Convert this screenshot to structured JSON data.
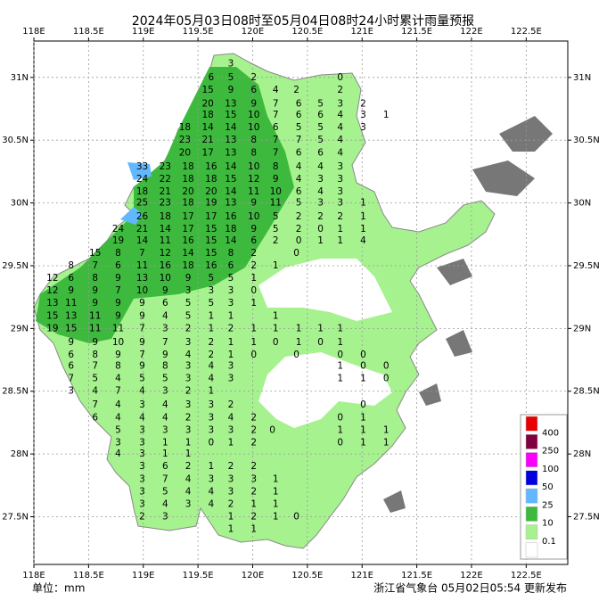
{
  "map": {
    "title": "2024年05月03日08时至05月04日08时24小时累计雨量预报",
    "unit_label": "单位：mm",
    "footer": "浙江省气象台 05月02日05:54 更新发布",
    "lonlim": [
      118,
      122.88
    ],
    "latlim": [
      27.12,
      31.29
    ],
    "grid": true,
    "lonticks": [
      {
        "value": 118,
        "label": "118E"
      },
      {
        "value": 118.5,
        "label": "118.5E"
      },
      {
        "value": 119,
        "label": "119E"
      },
      {
        "value": 119.5,
        "label": "119.5E"
      },
      {
        "value": 120,
        "label": "120E"
      },
      {
        "value": 120.5,
        "label": "120.5E"
      },
      {
        "value": 121,
        "label": "121E"
      },
      {
        "value": 121.5,
        "label": "121.5E"
      },
      {
        "value": 122,
        "label": "122E"
      },
      {
        "value": 122.5,
        "label": "122.5E"
      }
    ],
    "latticks": [
      {
        "value": 31,
        "label": "31N"
      },
      {
        "value": 30.5,
        "label": "30.5N"
      },
      {
        "value": 30,
        "label": "30N"
      },
      {
        "value": 29.5,
        "label": "29.5N"
      },
      {
        "value": 29,
        "label": "29N"
      },
      {
        "value": 28.5,
        "label": "28.5N"
      },
      {
        "value": 28,
        "label": "28N"
      },
      {
        "value": 27.5,
        "label": "27.5N"
      }
    ],
    "legend": {
      "thresholds": [
        0.1,
        10,
        25,
        50,
        100,
        250,
        400
      ],
      "colors": [
        "#ffffff",
        "#a6f28f",
        "#3dba3d",
        "#61b8ff",
        "#0000e1",
        "#fa00fa",
        "#800040",
        "#e80000"
      ]
    },
    "stations": [
      {
        "lat": 31.11,
        "lon": [
          119.8
        ],
        "values": [
          3
        ]
      },
      {
        "lat": 31.0,
        "lon": [
          119.62,
          119.8,
          120.01,
          120.8
        ],
        "values": [
          6,
          5,
          2,
          0
        ]
      },
      {
        "lat": 30.9,
        "lon": [
          119.59,
          119.8,
          120.01,
          120.21,
          120.4,
          120.8
        ],
        "values": [
          15,
          9,
          6,
          4,
          2,
          2
        ]
      },
      {
        "lat": 30.79,
        "lon": [
          119.59,
          119.8,
          120.01,
          120.21,
          120.42,
          120.62,
          120.8,
          121.01
        ],
        "values": [
          20,
          13,
          9,
          7,
          6,
          5,
          3,
          2
        ]
      },
      {
        "lat": 30.7,
        "lon": [
          119.59,
          119.8,
          120.01,
          120.21,
          120.42,
          120.62,
          120.8,
          121.01,
          121.22
        ],
        "values": [
          18,
          15,
          10,
          7,
          6,
          6,
          4,
          3,
          1
        ]
      },
      {
        "lat": 30.6,
        "lon": [
          119.38,
          119.59,
          119.8,
          120.01,
          120.21,
          120.42,
          120.62,
          120.8,
          121.01
        ],
        "values": [
          18,
          14,
          14,
          10,
          6,
          5,
          5,
          4,
          3
        ]
      },
      {
        "lat": 30.5,
        "lon": [
          119.38,
          119.59,
          119.8,
          120.01,
          120.21,
          120.42,
          120.62,
          120.8
        ],
        "values": [
          23,
          21,
          13,
          8,
          7,
          7,
          5,
          4
        ]
      },
      {
        "lat": 30.4,
        "lon": [
          119.38,
          119.59,
          119.8,
          120.01,
          120.21,
          120.42,
          120.62,
          120.8
        ],
        "values": [
          20,
          17,
          13,
          8,
          7,
          6,
          6,
          4
        ]
      },
      {
        "lat": 30.29,
        "lon": [
          118.99,
          119.2,
          119.41,
          119.62,
          119.8,
          120.01,
          120.21,
          120.42,
          120.62,
          120.8
        ],
        "values": [
          33,
          23,
          18,
          16,
          14,
          10,
          8,
          4,
          4,
          3
        ]
      },
      {
        "lat": 30.19,
        "lon": [
          118.99,
          119.2,
          119.41,
          119.62,
          119.8,
          120.01,
          120.21,
          120.42,
          120.62,
          120.8
        ],
        "values": [
          24,
          22,
          18,
          18,
          15,
          12,
          9,
          4,
          3,
          3
        ]
      },
      {
        "lat": 30.09,
        "lon": [
          118.99,
          119.2,
          119.41,
          119.62,
          119.8,
          120.01,
          120.21,
          120.42,
          120.62,
          120.8
        ],
        "values": [
          18,
          21,
          20,
          20,
          14,
          11,
          10,
          6,
          4,
          3
        ]
      },
      {
        "lat": 30.0,
        "lon": [
          118.99,
          119.2,
          119.41,
          119.62,
          119.8,
          120.01,
          120.21,
          120.42,
          120.62,
          120.8,
          121.01
        ],
        "values": [
          25,
          23,
          18,
          19,
          13,
          9,
          11,
          5,
          3,
          3,
          1
        ]
      },
      {
        "lat": 29.89,
        "lon": [
          118.99,
          119.2,
          119.41,
          119.62,
          119.8,
          120.01,
          120.21,
          120.42,
          120.62,
          120.8,
          121.01
        ],
        "values": [
          26,
          18,
          17,
          17,
          16,
          10,
          5,
          2,
          2,
          2,
          1
        ]
      },
      {
        "lat": 29.79,
        "lon": [
          118.77,
          118.99,
          119.2,
          119.41,
          119.62,
          119.8,
          120.01,
          120.21,
          120.42,
          120.62,
          120.8,
          121.01
        ],
        "values": [
          24,
          21,
          14,
          17,
          15,
          18,
          9,
          5,
          2,
          0,
          1,
          1
        ]
      },
      {
        "lat": 29.7,
        "lon": [
          118.77,
          118.99,
          119.2,
          119.41,
          119.62,
          119.8,
          120.01,
          120.21,
          120.42,
          120.62,
          120.8,
          121.01
        ],
        "values": [
          19,
          14,
          11,
          16,
          15,
          14,
          6,
          2,
          0,
          1,
          1,
          4
        ]
      },
      {
        "lat": 29.6,
        "lon": [
          118.56,
          118.77,
          118.99,
          119.2,
          119.41,
          119.62,
          119.8,
          120.01,
          120.4
        ],
        "values": [
          15,
          8,
          7,
          12,
          14,
          15,
          8,
          2,
          0
        ]
      },
      {
        "lat": 29.5,
        "lon": [
          118.34,
          118.56,
          118.77,
          118.99,
          119.2,
          119.41,
          119.62,
          119.8,
          120.01,
          120.21
        ],
        "values": [
          8,
          7,
          6,
          11,
          16,
          18,
          16,
          6,
          2,
          1
        ]
      },
      {
        "lat": 29.4,
        "lon": [
          118.17,
          118.34,
          118.56,
          118.77,
          118.99,
          119.2,
          119.41,
          119.62,
          119.8,
          120.01
        ],
        "values": [
          12,
          6,
          8,
          9,
          13,
          10,
          9,
          5,
          5,
          1
        ]
      },
      {
        "lat": 29.3,
        "lon": [
          118.17,
          118.34,
          118.56,
          118.77,
          118.99,
          119.2,
          119.41,
          119.62,
          119.8,
          120.01
        ],
        "values": [
          12,
          9,
          9,
          7,
          10,
          9,
          3,
          3,
          3,
          0
        ]
      },
      {
        "lat": 29.2,
        "lon": [
          118.17,
          118.34,
          118.56,
          118.77,
          118.99,
          119.2,
          119.41,
          119.62,
          119.8,
          120.01
        ],
        "values": [
          13,
          11,
          9,
          9,
          9,
          6,
          5,
          5,
          3,
          1
        ]
      },
      {
        "lat": 29.1,
        "lon": [
          118.17,
          118.34,
          118.56,
          118.77,
          118.99,
          119.2,
          119.41,
          119.62,
          119.8,
          120.21
        ],
        "values": [
          15,
          13,
          11,
          9,
          9,
          4,
          5,
          1,
          1,
          1
        ]
      },
      {
        "lat": 29.0,
        "lon": [
          118.17,
          118.34,
          118.56,
          118.77,
          118.99,
          119.2,
          119.41,
          119.62,
          119.8,
          120.01,
          120.21,
          120.42,
          120.62,
          120.8
        ],
        "values": [
          19,
          15,
          11,
          11,
          7,
          3,
          2,
          1,
          2,
          1,
          1,
          1,
          1,
          1
        ]
      },
      {
        "lat": 28.89,
        "lon": [
          118.34,
          118.56,
          118.77,
          118.99,
          119.2,
          119.41,
          119.62,
          119.8,
          120.01,
          120.21,
          120.42,
          120.62,
          120.8
        ],
        "values": [
          9,
          9,
          10,
          9,
          7,
          3,
          2,
          1,
          1,
          0,
          1,
          0,
          1
        ]
      },
      {
        "lat": 28.79,
        "lon": [
          118.34,
          118.56,
          118.77,
          118.99,
          119.2,
          119.41,
          119.62,
          119.8,
          120.01,
          120.4,
          120.8,
          121.01
        ],
        "values": [
          6,
          8,
          9,
          7,
          9,
          4,
          2,
          1,
          0,
          0,
          0,
          0
        ]
      },
      {
        "lat": 28.7,
        "lon": [
          118.34,
          118.56,
          118.77,
          118.99,
          119.2,
          119.41,
          119.62,
          119.8,
          120.8,
          121.01,
          121.22
        ],
        "values": [
          6,
          7,
          8,
          9,
          8,
          3,
          4,
          3,
          1,
          0,
          0
        ]
      },
      {
        "lat": 28.6,
        "lon": [
          118.34,
          118.56,
          118.77,
          118.99,
          119.2,
          119.41,
          119.62,
          119.8,
          120.8,
          121.01,
          121.22
        ],
        "values": [
          7,
          5,
          4,
          5,
          5,
          3,
          4,
          3,
          1,
          1,
          0
        ]
      },
      {
        "lat": 28.5,
        "lon": [
          118.34,
          118.56,
          118.77,
          118.99,
          119.2,
          119.41,
          119.62
        ],
        "values": [
          3,
          4,
          7,
          4,
          3,
          2,
          1
        ]
      },
      {
        "lat": 28.39,
        "lon": [
          118.56,
          118.77,
          118.99,
          119.2,
          119.41,
          119.62,
          119.8,
          121.01
        ],
        "values": [
          7,
          4,
          3,
          4,
          3,
          3,
          2,
          0
        ]
      },
      {
        "lat": 28.29,
        "lon": [
          118.56,
          118.77,
          118.99,
          119.2,
          119.41,
          119.62,
          119.8,
          120.01,
          120.8,
          121.01
        ],
        "values": [
          6,
          4,
          4,
          4,
          2,
          3,
          4,
          2,
          0,
          1
        ]
      },
      {
        "lat": 28.19,
        "lon": [
          118.77,
          118.99,
          119.2,
          119.41,
          119.62,
          119.8,
          120.01,
          120.18,
          120.8,
          121.01,
          121.22
        ],
        "values": [
          5,
          3,
          3,
          3,
          3,
          3,
          2,
          0,
          1,
          1,
          1
        ]
      },
      {
        "lat": 28.09,
        "lon": [
          118.77,
          118.99,
          119.2,
          119.41,
          119.62,
          119.8,
          120.01,
          120.8,
          121.01,
          121.22
        ],
        "values": [
          3,
          3,
          1,
          1,
          0,
          1,
          2,
          0,
          1,
          1
        ]
      },
      {
        "lat": 28.0,
        "lon": [
          118.77,
          118.99,
          119.2,
          119.41
        ],
        "values": [
          4,
          3,
          1,
          1
        ]
      },
      {
        "lat": 27.9,
        "lon": [
          118.99,
          119.2,
          119.41,
          119.62,
          119.8,
          120.01
        ],
        "values": [
          3,
          6,
          2,
          1,
          2,
          2
        ]
      },
      {
        "lat": 27.8,
        "lon": [
          118.99,
          119.2,
          119.41,
          119.62,
          119.8,
          120.01,
          120.21
        ],
        "values": [
          3,
          7,
          4,
          3,
          3,
          3,
          1
        ]
      },
      {
        "lat": 27.7,
        "lon": [
          118.99,
          119.2,
          119.41,
          119.62,
          119.8,
          120.01,
          120.21
        ],
        "values": [
          3,
          5,
          4,
          4,
          3,
          2,
          1
        ]
      },
      {
        "lat": 27.6,
        "lon": [
          118.99,
          119.2,
          119.41,
          119.62,
          119.8,
          120.01,
          120.21
        ],
        "values": [
          3,
          4,
          3,
          4,
          2,
          1,
          1
        ]
      },
      {
        "lat": 27.5,
        "lon": [
          118.99,
          119.2,
          119.8,
          120.01,
          120.21,
          120.4
        ],
        "values": [
          2,
          3,
          1,
          2,
          1,
          0
        ]
      },
      {
        "lat": 27.4,
        "lon": [
          119.8,
          120.01
        ],
        "values": [
          1,
          1
        ]
      }
    ]
  }
}
